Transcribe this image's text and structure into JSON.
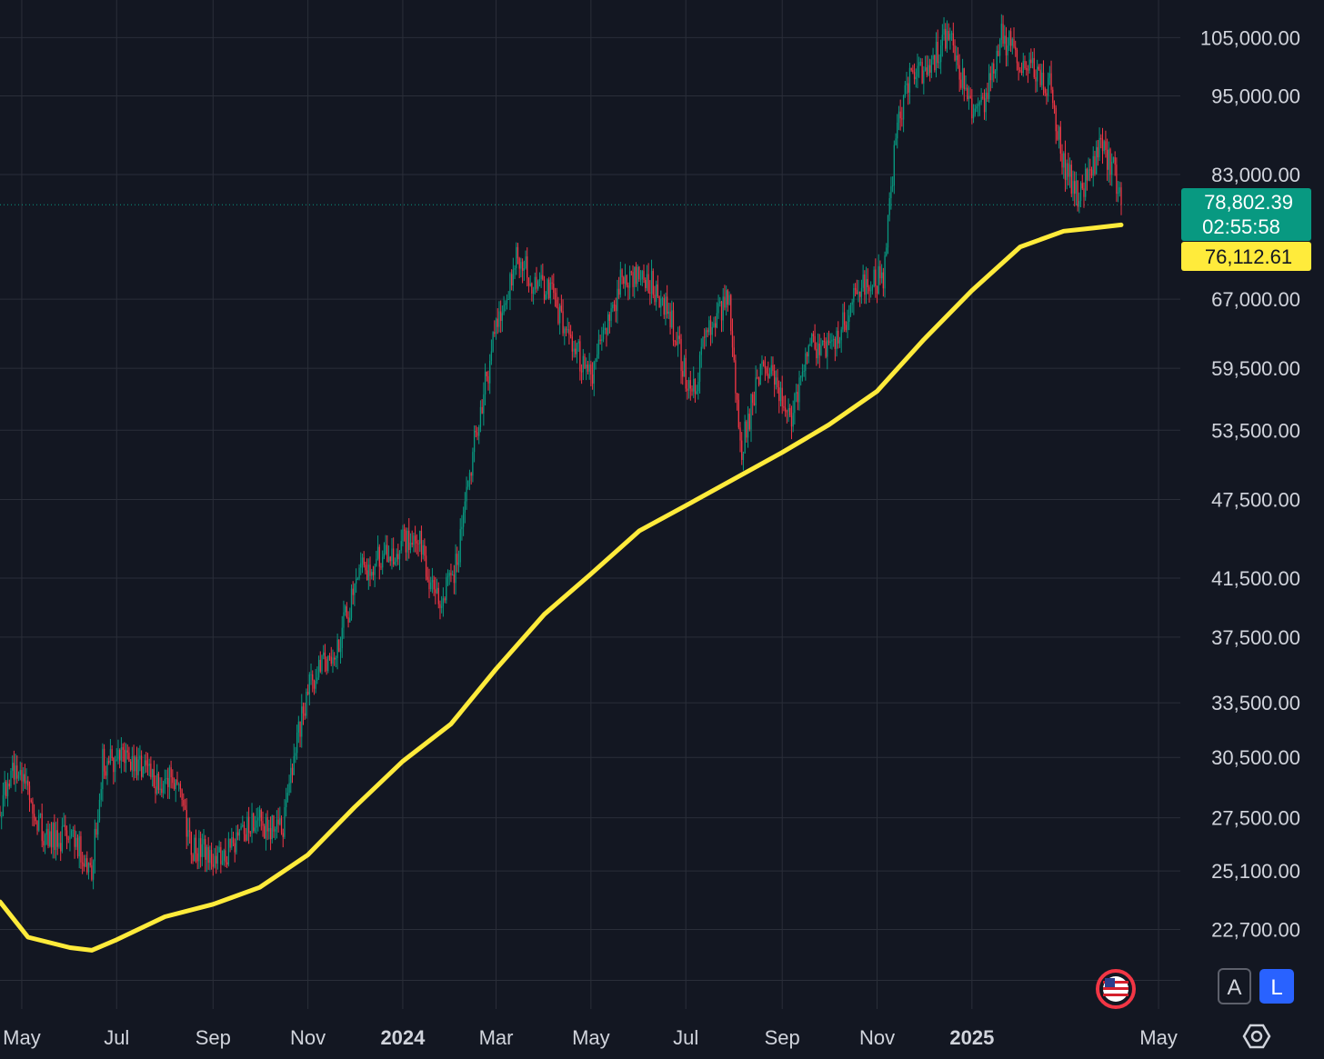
{
  "chart_data": {
    "type": "candlestick",
    "scale": "log",
    "y_ticks": [
      105000,
      95000,
      83000,
      67000,
      59500,
      53500,
      47500,
      41500,
      37500,
      33500,
      30500,
      27500,
      25100,
      22700
    ],
    "y_tick_labels": [
      "105,000.00",
      "95,000.00",
      "83,000.00",
      "67,000.00",
      "59,500.00",
      "53,500.00",
      "47,500.00",
      "41,500.00",
      "37,500.00",
      "33,500.00",
      "30,500.00",
      "27,500.00",
      "25,100.00",
      "22,700.00"
    ],
    "x_ticks": [
      {
        "label": "May",
        "date": "2023-05-01",
        "major": false
      },
      {
        "label": "Jul",
        "date": "2023-07-01",
        "major": false
      },
      {
        "label": "Sep",
        "date": "2023-09-01",
        "major": false
      },
      {
        "label": "Nov",
        "date": "2023-11-01",
        "major": false
      },
      {
        "label": "2024",
        "date": "2024-01-01",
        "major": true
      },
      {
        "label": "Mar",
        "date": "2024-03-01",
        "major": false
      },
      {
        "label": "May",
        "date": "2024-05-01",
        "major": false
      },
      {
        "label": "Jul",
        "date": "2024-07-01",
        "major": false
      },
      {
        "label": "Sep",
        "date": "2024-09-01",
        "major": false
      },
      {
        "label": "Nov",
        "date": "2024-11-01",
        "major": false
      },
      {
        "label": "2025",
        "date": "2025-01-01",
        "major": true
      },
      {
        "label": "May",
        "date": "2025-05-01",
        "major": false
      }
    ],
    "x_range": [
      "2023-04-17",
      "2025-05-15"
    ],
    "y_range": [
      19800,
      112000
    ],
    "grid": true,
    "price_path": [
      [
        "2023-04-17",
        27800
      ],
      [
        "2023-04-25",
        30000
      ],
      [
        "2023-05-05",
        28800
      ],
      [
        "2023-05-15",
        26800
      ],
      [
        "2023-05-25",
        26500
      ],
      [
        "2023-06-05",
        26500
      ],
      [
        "2023-06-15",
        25100
      ],
      [
        "2023-06-22",
        30200
      ],
      [
        "2023-07-05",
        30500
      ],
      [
        "2023-07-15",
        30000
      ],
      [
        "2023-07-25",
        29300
      ],
      [
        "2023-08-10",
        29400
      ],
      [
        "2023-08-18",
        26000
      ],
      [
        "2023-08-31",
        25900
      ],
      [
        "2023-09-10",
        25800
      ],
      [
        "2023-09-20",
        26900
      ],
      [
        "2023-10-01",
        27200
      ],
      [
        "2023-10-15",
        26800
      ],
      [
        "2023-10-23",
        30500
      ],
      [
        "2023-11-01",
        34500
      ],
      [
        "2023-11-20",
        37000
      ],
      [
        "2023-12-05",
        42000
      ],
      [
        "2023-12-20",
        43000
      ],
      [
        "2024-01-10",
        45000
      ],
      [
        "2024-01-22",
        39800
      ],
      [
        "2024-02-05",
        42500
      ],
      [
        "2024-02-15",
        51500
      ],
      [
        "2024-02-28",
        62000
      ],
      [
        "2024-03-14",
        72000
      ],
      [
        "2024-03-25",
        69000
      ],
      [
        "2024-04-05",
        68000
      ],
      [
        "2024-04-18",
        62500
      ],
      [
        "2024-05-01",
        58500
      ],
      [
        "2024-05-20",
        69000
      ],
      [
        "2024-06-05",
        70000
      ],
      [
        "2024-06-20",
        65500
      ],
      [
        "2024-07-05",
        56500
      ],
      [
        "2024-07-15",
        63500
      ],
      [
        "2024-07-29",
        67000
      ],
      [
        "2024-08-05",
        51500
      ],
      [
        "2024-08-20",
        60500
      ],
      [
        "2024-09-06",
        54500
      ],
      [
        "2024-09-20",
        62500
      ],
      [
        "2024-10-01",
        61000
      ],
      [
        "2024-10-20",
        68000
      ],
      [
        "2024-11-05",
        69500
      ],
      [
        "2024-11-13",
        88000
      ],
      [
        "2024-11-22",
        98500
      ],
      [
        "2024-12-05",
        99500
      ],
      [
        "2024-12-17",
        106500
      ],
      [
        "2024-12-30",
        93500
      ],
      [
        "2025-01-10",
        94500
      ],
      [
        "2025-01-20",
        105500
      ],
      [
        "2025-02-01",
        101000
      ],
      [
        "2025-02-20",
        96500
      ],
      [
        "2025-03-01",
        84500
      ],
      [
        "2025-03-10",
        80000
      ],
      [
        "2025-03-25",
        87000
      ],
      [
        "2025-04-01",
        84500
      ],
      [
        "2025-04-07",
        78800
      ]
    ],
    "moving_average": {
      "color": "#ffeb3b",
      "points": [
        [
          "2023-04-17",
          23800
        ],
        [
          "2023-05-05",
          22400
        ],
        [
          "2023-06-01",
          22000
        ],
        [
          "2023-06-15",
          21900
        ],
        [
          "2023-07-01",
          22300
        ],
        [
          "2023-08-01",
          23200
        ],
        [
          "2023-09-01",
          23700
        ],
        [
          "2023-10-01",
          24400
        ],
        [
          "2023-11-01",
          25800
        ],
        [
          "2023-12-01",
          28000
        ],
        [
          "2024-01-01",
          30300
        ],
        [
          "2024-02-01",
          32300
        ],
        [
          "2024-03-01",
          35500
        ],
        [
          "2024-04-01",
          39000
        ],
        [
          "2024-05-01",
          41800
        ],
        [
          "2024-06-01",
          45000
        ],
        [
          "2024-07-01",
          47000
        ],
        [
          "2024-08-01",
          49200
        ],
        [
          "2024-09-01",
          51500
        ],
        [
          "2024-10-01",
          54000
        ],
        [
          "2024-11-01",
          57200
        ],
        [
          "2024-12-01",
          62500
        ],
        [
          "2025-01-01",
          68000
        ],
        [
          "2025-02-01",
          73300
        ],
        [
          "2025-03-01",
          75300
        ],
        [
          "2025-03-20",
          75700
        ],
        [
          "2025-04-07",
          76112.61
        ]
      ]
    },
    "last_price": {
      "value": 78802.39,
      "label": "78,802.39",
      "countdown": "02:55:58",
      "color": "#089981"
    },
    "ma_value": {
      "value": 76112.61,
      "label": "76,112.61",
      "color": "#ffeb3b"
    },
    "colors": {
      "up": "#089981",
      "down": "#f23645",
      "grid": "#2a2e39",
      "text": "#d1d4dc",
      "background": "#131722"
    }
  },
  "controls": {
    "auto_label": "A",
    "log_label": "L",
    "flag_icon": "us-flag-icon",
    "settings_icon": "gear-icon"
  }
}
